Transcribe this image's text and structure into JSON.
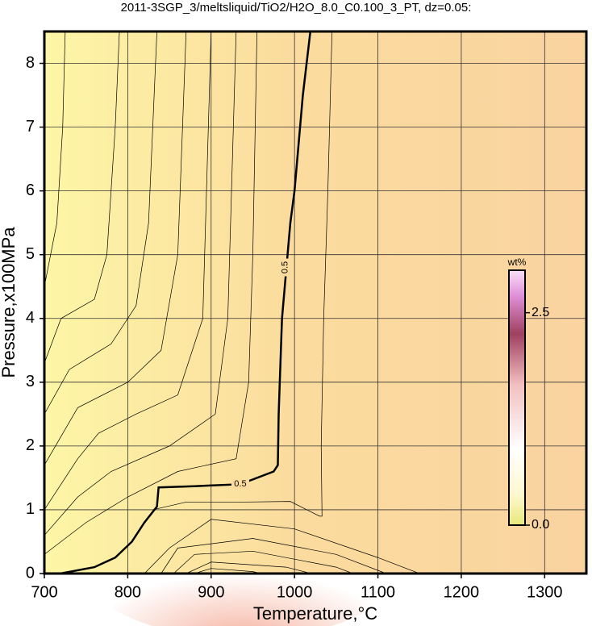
{
  "chart_data": {
    "type": "contour",
    "title": "2011-3SGP_3/meltsliquid/TiO2/H2O_8.0_C0.100_3_PT, dz=0.05:",
    "x_label": "Temperature,°C",
    "y_label": "Pressure,x100MPa",
    "xlim": [
      700,
      1350
    ],
    "ylim": [
      0,
      8.5
    ],
    "xticks": [
      700,
      800,
      900,
      1000,
      1100,
      1200,
      1300
    ],
    "yticks": [
      0,
      1,
      2,
      3,
      4,
      5,
      6,
      7,
      8
    ],
    "grid": true,
    "contours": [
      {
        "level": 0.5,
        "x": [
          719,
          760,
          785,
          805,
          820,
          835,
          837,
          880,
          935,
          975,
          980,
          981,
          985,
          995,
          1000,
          1010,
          1019
        ],
        "y": [
          0,
          0.1,
          0.25,
          0.5,
          0.8,
          1.05,
          1.35,
          1.37,
          1.4,
          1.6,
          1.7,
          2.5,
          4.0,
          5.5,
          6.0,
          7.5,
          8.5
        ]
      },
      {
        "x": [
          830,
          870,
          935,
          995,
          1030,
          1033,
          1032,
          1035,
          1040,
          1045
        ],
        "y": [
          1.0,
          1.12,
          1.12,
          1.13,
          0.9,
          0.9,
          2,
          4,
          6,
          8.5
        ]
      },
      {
        "x": [
          700,
          715,
          722,
          725
        ],
        "y": [
          4.5,
          5.5,
          7,
          8.5
        ]
      },
      {
        "x": [
          700,
          720,
          760,
          775,
          785,
          790
        ],
        "y": [
          3.3,
          4,
          4.3,
          5,
          7,
          8.5
        ]
      },
      {
        "x": [
          700,
          730,
          780,
          810,
          825,
          835
        ],
        "y": [
          2.5,
          3.2,
          3.6,
          4.2,
          5.5,
          8.5
        ]
      },
      {
        "x": [
          700,
          740,
          800,
          840,
          860,
          870
        ],
        "y": [
          1.7,
          2.6,
          3.0,
          3.5,
          5,
          8.5
        ]
      },
      {
        "x": [
          700,
          740,
          765,
          810,
          860,
          890,
          900
        ],
        "y": [
          1.0,
          1.8,
          2.2,
          2.5,
          2.8,
          4,
          8.5
        ]
      },
      {
        "x": [
          700,
          740,
          780,
          850,
          905,
          920,
          930
        ],
        "y": [
          0.6,
          1.2,
          1.6,
          2.0,
          2.5,
          4,
          8.5
        ]
      },
      {
        "x": [
          700,
          750,
          800,
          860,
          930,
          945,
          950,
          955
        ],
        "y": [
          0.3,
          0.8,
          1.2,
          1.6,
          1.8,
          3,
          5,
          8.5
        ]
      },
      {
        "x": [
          820,
          850,
          900,
          1000,
          1100,
          1150
        ],
        "y": [
          0,
          0.4,
          0.85,
          0.7,
          0.25,
          0
        ]
      },
      {
        "x": [
          840,
          860,
          950,
          1050,
          1110
        ],
        "y": [
          0,
          0.4,
          0.55,
          0.3,
          0
        ]
      },
      {
        "x": [
          855,
          880,
          950,
          1050,
          1070
        ],
        "y": [
          0,
          0.3,
          0.35,
          0.1,
          0
        ]
      },
      {
        "x": [
          870,
          900,
          990,
          1020
        ],
        "y": [
          0,
          0.18,
          0.1,
          0
        ]
      },
      {
        "x": [
          880,
          900,
          950,
          960
        ],
        "y": [
          0,
          0.08,
          0.03,
          0
        ]
      }
    ],
    "colorbar": {
      "label": "wt%",
      "lim": [
        0,
        3
      ],
      "ticks": [
        {
          "value": 0,
          "label": "0.0"
        },
        {
          "value": 2.5,
          "label": "2.5"
        }
      ]
    }
  }
}
